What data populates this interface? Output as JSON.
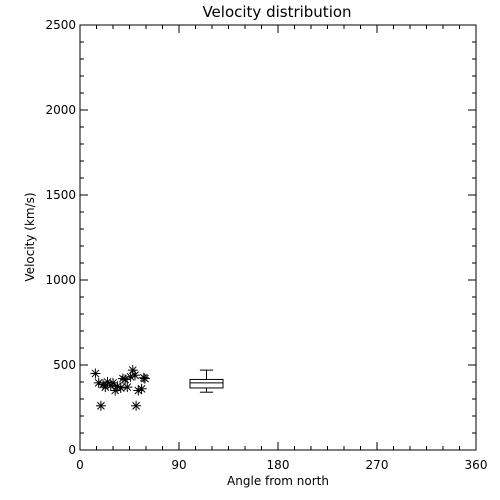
{
  "chart_data": {
    "type": "scatter",
    "title": "Velocity distribution",
    "xlabel": "Angle from north",
    "ylabel": "Velocity (km/s)",
    "xlim": [
      0,
      360
    ],
    "ylim": [
      0,
      2500
    ],
    "xticks": [
      "0",
      "90",
      "180",
      "270",
      "360"
    ],
    "yticks": [
      "0",
      "500",
      "1000",
      "1500",
      "2000",
      "2500"
    ],
    "marker": "asterisk",
    "points": [
      {
        "x": 14,
        "y": 450
      },
      {
        "x": 17,
        "y": 395
      },
      {
        "x": 19,
        "y": 260
      },
      {
        "x": 21,
        "y": 385
      },
      {
        "x": 23,
        "y": 370
      },
      {
        "x": 25,
        "y": 400
      },
      {
        "x": 28,
        "y": 380
      },
      {
        "x": 30,
        "y": 395
      },
      {
        "x": 32,
        "y": 350
      },
      {
        "x": 34,
        "y": 375
      },
      {
        "x": 37,
        "y": 365
      },
      {
        "x": 39,
        "y": 420
      },
      {
        "x": 41,
        "y": 415
      },
      {
        "x": 43,
        "y": 370
      },
      {
        "x": 46,
        "y": 430
      },
      {
        "x": 48,
        "y": 470
      },
      {
        "x": 50,
        "y": 440
      },
      {
        "x": 51,
        "y": 260
      },
      {
        "x": 53,
        "y": 350
      },
      {
        "x": 56,
        "y": 360
      },
      {
        "x": 58,
        "y": 425
      },
      {
        "x": 59,
        "y": 420
      }
    ],
    "boxplot": {
      "x": 115,
      "halfwidth": 15,
      "whisker_cap_halfwidth": 6,
      "min": 340,
      "q1": 365,
      "median": 395,
      "q3": 415,
      "max": 470
    }
  }
}
